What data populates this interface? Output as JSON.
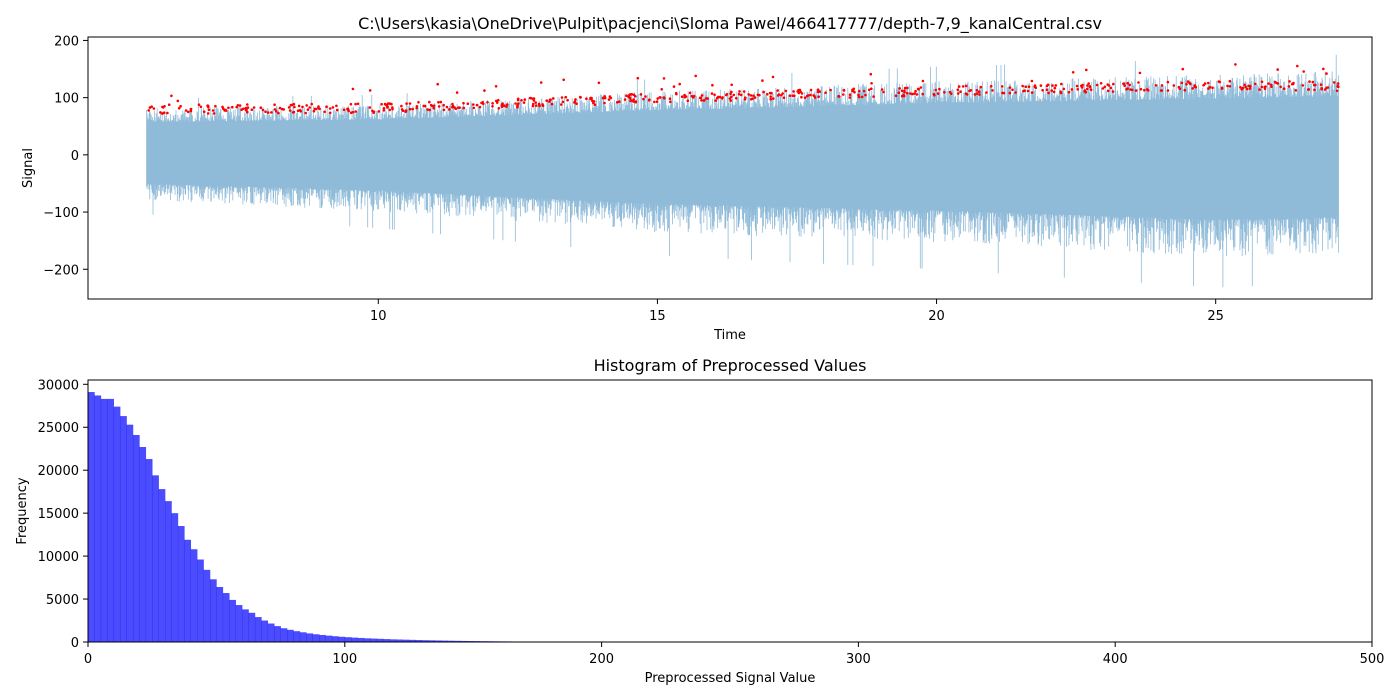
{
  "chart_data": [
    {
      "type": "line",
      "title": "C:\\Users\\kasia\\OneDrive\\Pulpit\\pacjenci\\Sloma Pawel/466417777/depth-7,9_kanalCentral.csv",
      "xlabel": "Time",
      "ylabel": "Signal",
      "xlim": [
        4.8,
        27.8
      ],
      "ylim": [
        -252,
        206
      ],
      "xticks": [
        10,
        15,
        20,
        25
      ],
      "yticks": [
        -200,
        -100,
        0,
        100,
        200
      ],
      "grid": false,
      "series": [
        {
          "kind": "signal",
          "color": "#1f77b4",
          "opacity": 0.5,
          "x_range": [
            5.85,
            27.2
          ],
          "upper_envelope": [
            [
              5.85,
              70
            ],
            [
              10,
              75
            ],
            [
              15,
              95
            ],
            [
              20,
              110
            ],
            [
              25,
              120
            ],
            [
              27.2,
              125
            ]
          ],
          "lower_envelope": [
            [
              5.85,
              -65
            ],
            [
              10,
              -80
            ],
            [
              15,
              -110
            ],
            [
              20,
              -125
            ],
            [
              25,
              -145
            ],
            [
              27.2,
              -140
            ]
          ],
          "max_value": 185,
          "min_value": -232
        },
        {
          "kind": "peaks",
          "color": "#ff0000",
          "marker": "dot",
          "x_range": [
            5.85,
            27.2
          ],
          "level_trend": [
            [
              5.85,
              78
            ],
            [
              10,
              80
            ],
            [
              15,
              98
            ],
            [
              20,
              110
            ],
            [
              25,
              120
            ],
            [
              27.2,
              118
            ]
          ]
        }
      ]
    },
    {
      "type": "bar",
      "title": "Histogram of Preprocessed Values",
      "xlabel": "Preprocessed Signal Value",
      "ylabel": "Frequency",
      "xlim": [
        0,
        500
      ],
      "ylim": [
        0,
        30500
      ],
      "xticks": [
        0,
        100,
        200,
        300,
        400,
        500
      ],
      "yticks": [
        0,
        5000,
        10000,
        15000,
        20000,
        25000,
        30000
      ],
      "grid": false,
      "color": "#0000ff",
      "opacity": 0.7,
      "bin_width": 2.5,
      "bin_start": 0,
      "values": [
        29100,
        28700,
        28300,
        28300,
        27400,
        26300,
        25300,
        24100,
        22700,
        21300,
        19400,
        17800,
        16400,
        15000,
        13500,
        11900,
        10800,
        9600,
        8400,
        7300,
        6400,
        5700,
        4900,
        4300,
        3800,
        3400,
        2900,
        2500,
        2150,
        1850,
        1600,
        1420,
        1260,
        1130,
        1000,
        900,
        820,
        740,
        670,
        610,
        560,
        510,
        470,
        430,
        400,
        370,
        340,
        310,
        290,
        270,
        250,
        230,
        210,
        195,
        180,
        165,
        150,
        138,
        126,
        115,
        105,
        96,
        88,
        80,
        72,
        64,
        58,
        52,
        46,
        40
      ]
    }
  ]
}
